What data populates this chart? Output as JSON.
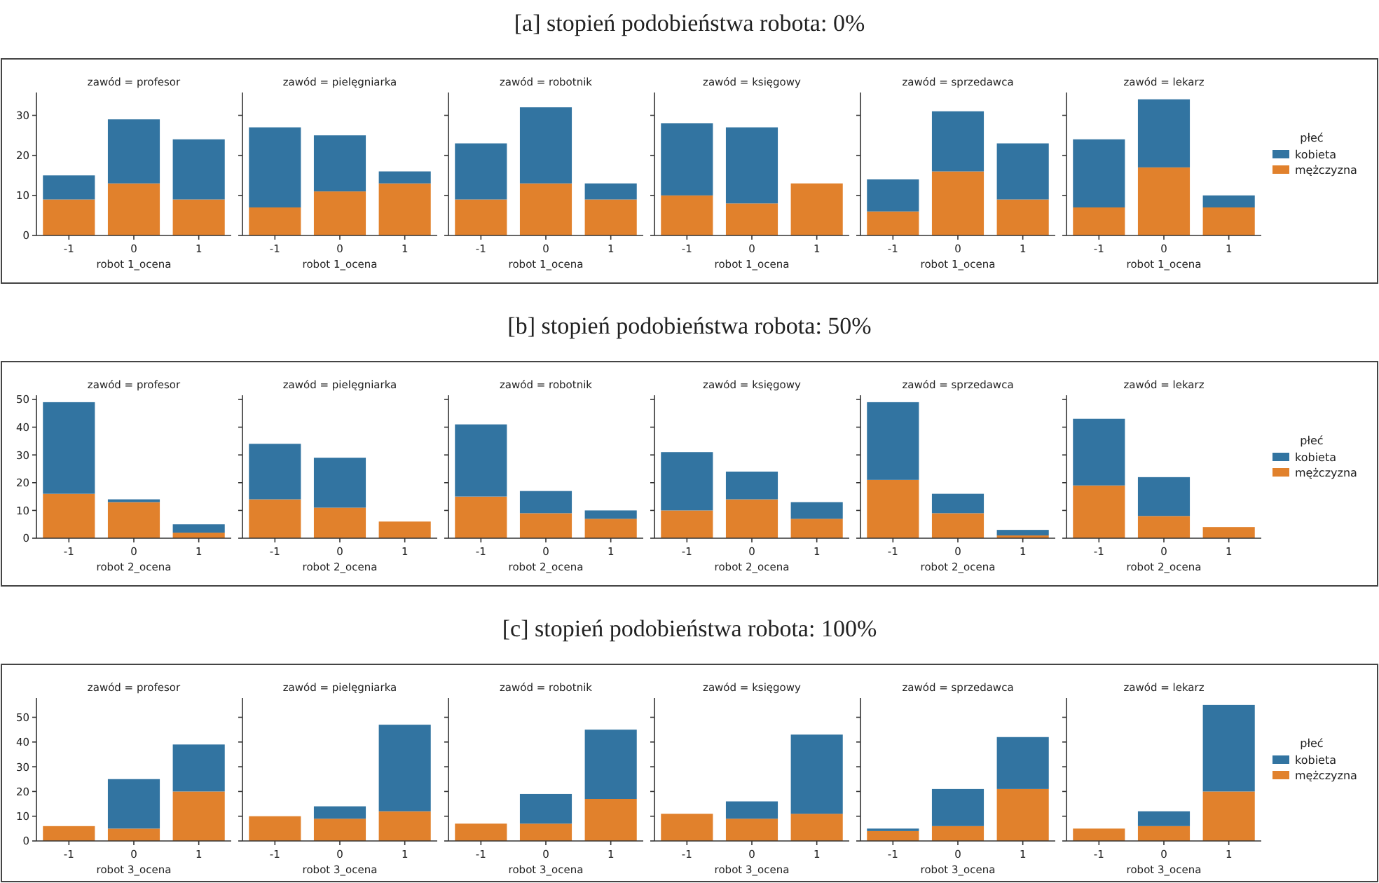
{
  "chart_data": [
    {
      "type": "other",
      "title": "[a] stopień podobieństwa robota: 0%"
    },
    {
      "type": "bar",
      "title": "zawód = profesor",
      "xlabel": "robot 1_ocena",
      "categories": [
        "-1",
        "0",
        "1"
      ],
      "stacked": true,
      "ylim": [
        0,
        35.7
      ],
      "yticks": [
        0,
        10,
        20,
        30
      ],
      "legend": false,
      "series": [
        {
          "color": "#e1812c",
          "values": [
            9,
            13,
            9
          ]
        },
        {
          "color": "#3274a1",
          "values": [
            6,
            16,
            15
          ]
        }
      ]
    },
    {
      "type": "bar",
      "title": "zawód = pielęgniarka",
      "xlabel": "robot 1_ocena",
      "categories": [
        "-1",
        "0",
        "1"
      ],
      "stacked": true,
      "ylim": [
        0,
        35.7
      ],
      "yticks": [
        0,
        10,
        20,
        30
      ],
      "tick_labels": "x",
      "legend": false,
      "series": [
        {
          "color": "#e1812c",
          "values": [
            7,
            11,
            13
          ]
        },
        {
          "color": "#3274a1",
          "values": [
            20,
            14,
            3
          ]
        }
      ]
    },
    {
      "type": "bar",
      "title": "zawód = robotnik",
      "xlabel": "robot 1_ocena",
      "categories": [
        "-1",
        "0",
        "1"
      ],
      "stacked": true,
      "ylim": [
        0,
        35.7
      ],
      "yticks": [
        0,
        10,
        20,
        30
      ],
      "tick_labels": "x",
      "legend": false,
      "series": [
        {
          "color": "#e1812c",
          "values": [
            9,
            13,
            9
          ]
        },
        {
          "color": "#3274a1",
          "values": [
            14,
            19,
            4
          ]
        }
      ]
    },
    {
      "type": "bar",
      "title": "zawód = księgowy",
      "xlabel": "robot 1_ocena",
      "categories": [
        "-1",
        "0",
        "1"
      ],
      "stacked": true,
      "ylim": [
        0,
        35.7
      ],
      "yticks": [
        0,
        10,
        20,
        30
      ],
      "tick_labels": "x",
      "legend": false,
      "series": [
        {
          "color": "#e1812c",
          "values": [
            10,
            8,
            13
          ]
        },
        {
          "color": "#3274a1",
          "values": [
            18,
            19,
            0
          ]
        }
      ]
    },
    {
      "type": "bar",
      "title": "zawód = sprzedawca",
      "xlabel": "robot 1_ocena",
      "categories": [
        "-1",
        "0",
        "1"
      ],
      "stacked": true,
      "ylim": [
        0,
        35.7
      ],
      "yticks": [
        0,
        10,
        20,
        30
      ],
      "tick_labels": "x",
      "legend": false,
      "series": [
        {
          "color": "#e1812c",
          "values": [
            6,
            16,
            9
          ]
        },
        {
          "color": "#3274a1",
          "values": [
            8,
            15,
            14
          ]
        }
      ]
    },
    {
      "type": "bar",
      "title": "zawód = lekarz",
      "xlabel": "robot 1_ocena",
      "categories": [
        "-1",
        "0",
        "1"
      ],
      "stacked": true,
      "ylim": [
        0,
        35.7
      ],
      "yticks": [
        0,
        10,
        20,
        30
      ],
      "tick_labels": "x",
      "legend": "right",
      "legend_title": "płeć",
      "series": [
        {
          "name": "mężczyzna",
          "color": "#e1812c",
          "values": [
            7,
            17,
            7
          ]
        },
        {
          "name": "kobieta",
          "color": "#3274a1",
          "values": [
            17,
            17,
            3
          ]
        }
      ]
    },
    {
      "type": "other",
      "title": "[b] stopień podobieństwa robota: 50%"
    },
    {
      "type": "bar",
      "title": "zawód = profesor",
      "xlabel": "robot 2_ocena",
      "categories": [
        "-1",
        "0",
        "1"
      ],
      "stacked": true,
      "ylim": [
        0,
        51.5
      ],
      "yticks": [
        0,
        10,
        20,
        30,
        40,
        50
      ],
      "legend": false,
      "series": [
        {
          "color": "#e1812c",
          "values": [
            16,
            13,
            2
          ]
        },
        {
          "color": "#3274a1",
          "values": [
            33,
            1,
            3
          ]
        }
      ]
    },
    {
      "type": "bar",
      "title": "zawód = pielęgniarka",
      "xlabel": "robot 2_ocena",
      "categories": [
        "-1",
        "0",
        "1"
      ],
      "stacked": true,
      "ylim": [
        0,
        51.5
      ],
      "yticks": [
        0,
        10,
        20,
        30,
        40,
        50
      ],
      "tick_labels": "x",
      "legend": false,
      "series": [
        {
          "color": "#e1812c",
          "values": [
            14,
            11,
            6
          ]
        },
        {
          "color": "#3274a1",
          "values": [
            20,
            18,
            0
          ]
        }
      ]
    },
    {
      "type": "bar",
      "title": "zawód = robotnik",
      "xlabel": "robot 2_ocena",
      "categories": [
        "-1",
        "0",
        "1"
      ],
      "stacked": true,
      "ylim": [
        0,
        51.5
      ],
      "yticks": [
        0,
        10,
        20,
        30,
        40,
        50
      ],
      "tick_labels": "x",
      "legend": false,
      "series": [
        {
          "color": "#e1812c",
          "values": [
            15,
            9,
            7
          ]
        },
        {
          "color": "#3274a1",
          "values": [
            26,
            8,
            3
          ]
        }
      ]
    },
    {
      "type": "bar",
      "title": "zawód = księgowy",
      "xlabel": "robot 2_ocena",
      "categories": [
        "-1",
        "0",
        "1"
      ],
      "stacked": true,
      "ylim": [
        0,
        51.5
      ],
      "yticks": [
        0,
        10,
        20,
        30,
        40,
        50
      ],
      "tick_labels": "x",
      "legend": false,
      "series": [
        {
          "color": "#e1812c",
          "values": [
            10,
            14,
            7
          ]
        },
        {
          "color": "#3274a1",
          "values": [
            21,
            10,
            6
          ]
        }
      ]
    },
    {
      "type": "bar",
      "title": "zawód = sprzedawca",
      "xlabel": "robot 2_ocena",
      "categories": [
        "-1",
        "0",
        "1"
      ],
      "stacked": true,
      "ylim": [
        0,
        51.5
      ],
      "yticks": [
        0,
        10,
        20,
        30,
        40,
        50
      ],
      "tick_labels": "x",
      "legend": false,
      "series": [
        {
          "color": "#e1812c",
          "values": [
            21,
            9,
            1
          ]
        },
        {
          "color": "#3274a1",
          "values": [
            28,
            7,
            2
          ]
        }
      ]
    },
    {
      "type": "bar",
      "title": "zawód = lekarz",
      "xlabel": "robot 2_ocena",
      "categories": [
        "-1",
        "0",
        "1"
      ],
      "stacked": true,
      "ylim": [
        0,
        51.5
      ],
      "yticks": [
        0,
        10,
        20,
        30,
        40,
        50
      ],
      "tick_labels": "x",
      "legend": "right",
      "legend_title": "płeć",
      "series": [
        {
          "name": "mężczyzna",
          "color": "#e1812c",
          "values": [
            19,
            8,
            4
          ]
        },
        {
          "name": "kobieta",
          "color": "#3274a1",
          "values": [
            24,
            14,
            0
          ]
        }
      ]
    },
    {
      "type": "other",
      "title": "[c] stopień podobieństwa robota: 100%"
    },
    {
      "type": "bar",
      "title": "zawód = profesor",
      "xlabel": "robot 3_ocena",
      "categories": [
        "-1",
        "0",
        "1"
      ],
      "stacked": true,
      "ylim": [
        0,
        57.8
      ],
      "yticks": [
        0,
        10,
        20,
        30,
        40,
        50
      ],
      "legend": false,
      "series": [
        {
          "color": "#e1812c",
          "values": [
            6,
            5,
            20
          ]
        },
        {
          "color": "#3274a1",
          "values": [
            0,
            20,
            19
          ]
        }
      ]
    },
    {
      "type": "bar",
      "title": "zawód = pielęgniarka",
      "xlabel": "robot 3_ocena",
      "categories": [
        "-1",
        "0",
        "1"
      ],
      "stacked": true,
      "ylim": [
        0,
        57.8
      ],
      "yticks": [
        0,
        10,
        20,
        30,
        40,
        50
      ],
      "tick_labels": "x",
      "legend": false,
      "series": [
        {
          "color": "#e1812c",
          "values": [
            10,
            9,
            12
          ]
        },
        {
          "color": "#3274a1",
          "values": [
            0,
            5,
            35
          ]
        }
      ]
    },
    {
      "type": "bar",
      "title": "zawód = robotnik",
      "xlabel": "robot 3_ocena",
      "categories": [
        "-1",
        "0",
        "1"
      ],
      "stacked": true,
      "ylim": [
        0,
        57.8
      ],
      "yticks": [
        0,
        10,
        20,
        30,
        40,
        50
      ],
      "tick_labels": "x",
      "legend": false,
      "series": [
        {
          "color": "#e1812c",
          "values": [
            7,
            7,
            17
          ]
        },
        {
          "color": "#3274a1",
          "values": [
            0,
            12,
            28
          ]
        }
      ]
    },
    {
      "type": "bar",
      "title": "zawód = księgowy",
      "xlabel": "robot 3_ocena",
      "categories": [
        "-1",
        "0",
        "1"
      ],
      "stacked": true,
      "ylim": [
        0,
        57.8
      ],
      "yticks": [
        0,
        10,
        20,
        30,
        40,
        50
      ],
      "tick_labels": "x",
      "legend": false,
      "series": [
        {
          "color": "#e1812c",
          "values": [
            11,
            9,
            11
          ]
        },
        {
          "color": "#3274a1",
          "values": [
            0,
            7,
            32
          ]
        }
      ]
    },
    {
      "type": "bar",
      "title": "zawód = sprzedawca",
      "xlabel": "robot 3_ocena",
      "categories": [
        "-1",
        "0",
        "1"
      ],
      "stacked": true,
      "ylim": [
        0,
        57.8
      ],
      "yticks": [
        0,
        10,
        20,
        30,
        40,
        50
      ],
      "tick_labels": "x",
      "legend": false,
      "series": [
        {
          "color": "#e1812c",
          "values": [
            4,
            6,
            21
          ]
        },
        {
          "color": "#3274a1",
          "values": [
            1,
            15,
            21
          ]
        }
      ]
    },
    {
      "type": "bar",
      "title": "zawód = lekarz",
      "xlabel": "robot 3_ocena",
      "categories": [
        "-1",
        "0",
        "1"
      ],
      "stacked": true,
      "ylim": [
        0,
        57.8
      ],
      "yticks": [
        0,
        10,
        20,
        30,
        40,
        50
      ],
      "tick_labels": "x",
      "legend": "right",
      "legend_title": "płeć",
      "series": [
        {
          "name": "mężczyzna",
          "color": "#e1812c",
          "values": [
            5,
            6,
            20
          ]
        },
        {
          "name": "kobieta",
          "color": "#3274a1",
          "values": [
            0,
            6,
            35
          ]
        }
      ]
    }
  ]
}
